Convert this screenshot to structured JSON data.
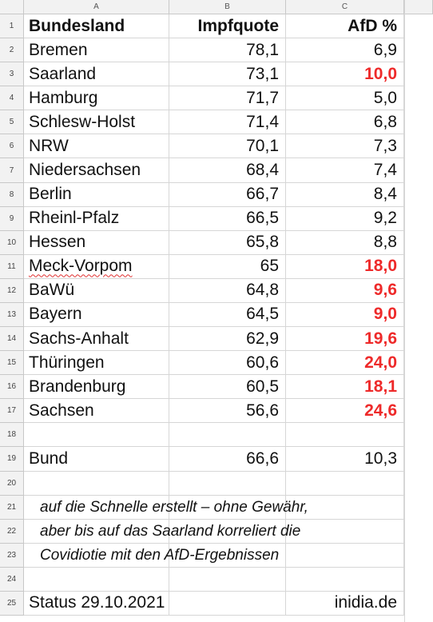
{
  "columns": [
    "A",
    "B",
    "C"
  ],
  "rows": [
    "1",
    "2",
    "3",
    "4",
    "5",
    "6",
    "7",
    "8",
    "9",
    "10",
    "11",
    "12",
    "13",
    "14",
    "15",
    "16",
    "17",
    "18",
    "19",
    "20",
    "21",
    "22",
    "23",
    "24",
    "25"
  ],
  "header": {
    "state": "Bundesland",
    "vacc": "Impfquote",
    "afd": "AfD %"
  },
  "states": [
    {
      "name": "Bremen",
      "vacc": "78,1",
      "afd": "6,9",
      "highlight": false
    },
    {
      "name": "Saarland",
      "vacc": "73,1",
      "afd": "10,0",
      "highlight": true
    },
    {
      "name": "Hamburg",
      "vacc": "71,7",
      "afd": "5,0",
      "highlight": false
    },
    {
      "name": "Schlesw-Holst",
      "vacc": "71,4",
      "afd": "6,8",
      "highlight": false
    },
    {
      "name": "NRW",
      "vacc": "70,1",
      "afd": "7,3",
      "highlight": false
    },
    {
      "name": "Niedersachsen",
      "vacc": "68,4",
      "afd": "7,4",
      "highlight": false
    },
    {
      "name": "Berlin",
      "vacc": "66,7",
      "afd": "8,4",
      "highlight": false
    },
    {
      "name": "Rheinl-Pfalz",
      "vacc": "66,5",
      "afd": "9,2",
      "highlight": false
    },
    {
      "name": "Hessen",
      "vacc": "65,8",
      "afd": "8,8",
      "highlight": false
    },
    {
      "name": "Meck-Vorpom",
      "vacc": "65",
      "afd": "18,0",
      "highlight": true
    },
    {
      "name": "BaWü",
      "vacc": "64,8",
      "afd": "9,6",
      "highlight": true
    },
    {
      "name": "Bayern",
      "vacc": "64,5",
      "afd": "9,0",
      "highlight": true
    },
    {
      "name": "Sachs-Anhalt",
      "vacc": "62,9",
      "afd": "19,6",
      "highlight": true
    },
    {
      "name": "Thüringen",
      "vacc": "60,6",
      "afd": "24,0",
      "highlight": true
    },
    {
      "name": "Brandenburg",
      "vacc": "60,5",
      "afd": "18,1",
      "highlight": true
    },
    {
      "name": "Sachsen",
      "vacc": "56,6",
      "afd": "24,6",
      "highlight": true
    }
  ],
  "total": {
    "name": "Bund",
    "vacc": "66,6",
    "afd": "10,3"
  },
  "notes": [
    "auf die Schnelle erstellt – ohne Gewähr,",
    "aber bis auf das Saarland korreliert die",
    "Covidiotie mit den AfD-Ergebnissen"
  ],
  "footer": {
    "status": "Status 29.10.2021",
    "source": "inidia.de"
  },
  "colors": {
    "highlight": "#ee2a2a",
    "grid": "#d6d6d6",
    "header_bg": "#f2f2f2"
  }
}
